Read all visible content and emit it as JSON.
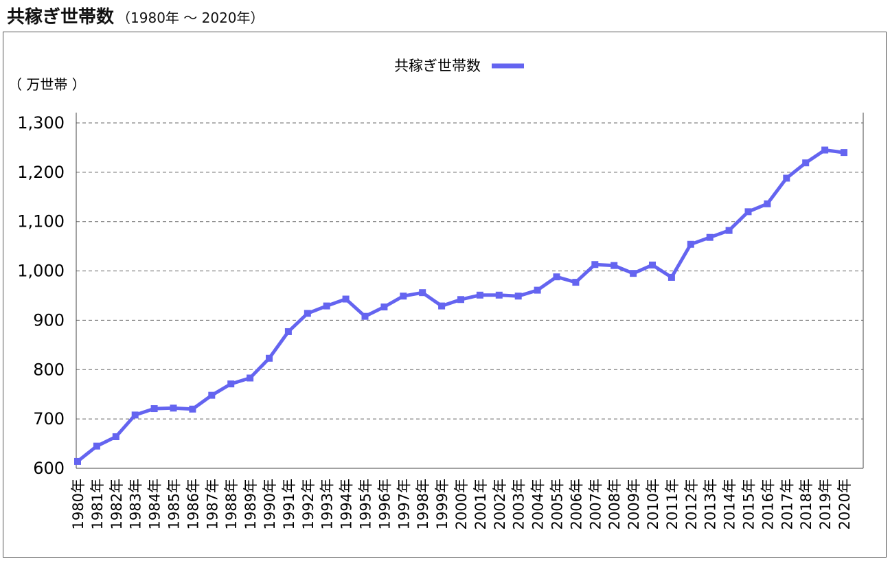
{
  "chart_data": {
    "type": "line",
    "title": "共稼ぎ世帯数",
    "subtitle": "（1980年 ～ 2020年）",
    "unit_label": "（ 万世帯 ）",
    "legend": {
      "placement": "top-center",
      "entries": [
        "共稼ぎ世帯数"
      ]
    },
    "ylim": [
      600,
      1300
    ],
    "yticks": [
      600,
      700,
      800,
      900,
      1000,
      1100,
      1200,
      1300
    ],
    "ytick_labels": [
      "600",
      "700",
      "800",
      "900",
      "1,000",
      "1,100",
      "1,200",
      "1,300"
    ],
    "grid": {
      "horizontal": true,
      "style": "dashed"
    },
    "x": [
      "1980年",
      "1981年",
      "1982年",
      "1983年",
      "1984年",
      "1985年",
      "1986年",
      "1987年",
      "1988年",
      "1989年",
      "1990年",
      "1991年",
      "1992年",
      "1993年",
      "1994年",
      "1995年",
      "1996年",
      "1997年",
      "1998年",
      "1999年",
      "2000年",
      "2001年",
      "2002年",
      "2003年",
      "2004年",
      "2005年",
      "2006年",
      "2007年",
      "2008年",
      "2009年",
      "2010年",
      "2011年",
      "2012年",
      "2013年",
      "2014年",
      "2015年",
      "2016年",
      "2017年",
      "2018年",
      "2019年",
      "2020年"
    ],
    "series": [
      {
        "name": "共稼ぎ世帯数",
        "color": "#6464f0",
        "values": [
          614,
          645,
          664,
          708,
          721,
          722,
          720,
          748,
          771,
          783,
          823,
          877,
          914,
          929,
          943,
          908,
          927,
          949,
          956,
          929,
          942,
          951,
          951,
          949,
          961,
          988,
          977,
          1013,
          1011,
          995,
          1012,
          987,
          1054,
          1068,
          1082,
          1120,
          1136,
          1188,
          1219,
          1245,
          1240
        ]
      }
    ]
  }
}
